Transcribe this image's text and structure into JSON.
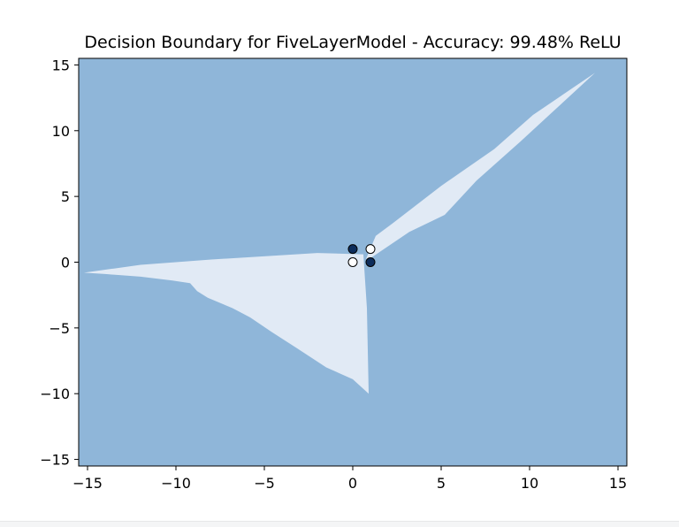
{
  "chart_data": {
    "type": "contour",
    "title": "Decision Boundary for FiveLayerModel - Accuracy: 99.48% ReLU",
    "xlabel": "",
    "ylabel": "",
    "xlim": [
      -15.5,
      15.5
    ],
    "ylim": [
      -15.5,
      15.5
    ],
    "xticks": [
      -15,
      -10,
      -5,
      0,
      5,
      10,
      15
    ],
    "yticks": [
      -15,
      -10,
      -5,
      0,
      5,
      10,
      15
    ],
    "xtick_labels": [
      "−15",
      "−10",
      "−5",
      "0",
      "5",
      "10",
      "15"
    ],
    "ytick_labels": [
      "−15",
      "−10",
      "−5",
      "0",
      "5",
      "10",
      "15"
    ],
    "grid": false,
    "colors": {
      "class0_region": "#8fb6d9",
      "class1_region": "#e1eaf5",
      "class0_point": "#0d2d5c",
      "class1_point": "#ffffff",
      "point_edge": "#000000"
    },
    "regions": [
      {
        "class": 1,
        "polygon": [
          [
            -15.2,
            -0.8
          ],
          [
            -14,
            -0.9
          ],
          [
            -12,
            -1.1
          ],
          [
            -10.2,
            -1.4
          ],
          [
            -9.2,
            -1.6
          ],
          [
            -8.8,
            -2.2
          ],
          [
            -8.2,
            -2.7
          ],
          [
            -6.8,
            -3.5
          ],
          [
            -5.8,
            -4.2
          ],
          [
            -4.6,
            -5.3
          ],
          [
            -3.2,
            -6.5
          ],
          [
            -1.5,
            -8.0
          ],
          [
            0,
            -8.9
          ],
          [
            0.9,
            -10.0
          ],
          [
            0.8,
            -3.5
          ],
          [
            0.6,
            0.6
          ],
          [
            -2,
            0.7
          ],
          [
            -8,
            0.2
          ],
          [
            -12,
            -0.2
          ]
        ]
      },
      {
        "class": 1,
        "polygon": [
          [
            0.75,
            0.25
          ],
          [
            1.3,
            2.0
          ],
          [
            2.3,
            3.0
          ],
          [
            5,
            5.8
          ],
          [
            8,
            8.6
          ],
          [
            10.2,
            11.2
          ],
          [
            13.7,
            14.4
          ],
          [
            9.5,
            9.2
          ],
          [
            7,
            6.2
          ],
          [
            5.2,
            3.6
          ],
          [
            3.2,
            2.3
          ],
          [
            1.0,
            0.3
          ]
        ]
      }
    ],
    "points": [
      {
        "x": 0,
        "y": 1,
        "class": 0
      },
      {
        "x": 1,
        "y": 0,
        "class": 0
      },
      {
        "x": 0,
        "y": 0,
        "class": 1
      },
      {
        "x": 1,
        "y": 1,
        "class": 1
      }
    ]
  }
}
